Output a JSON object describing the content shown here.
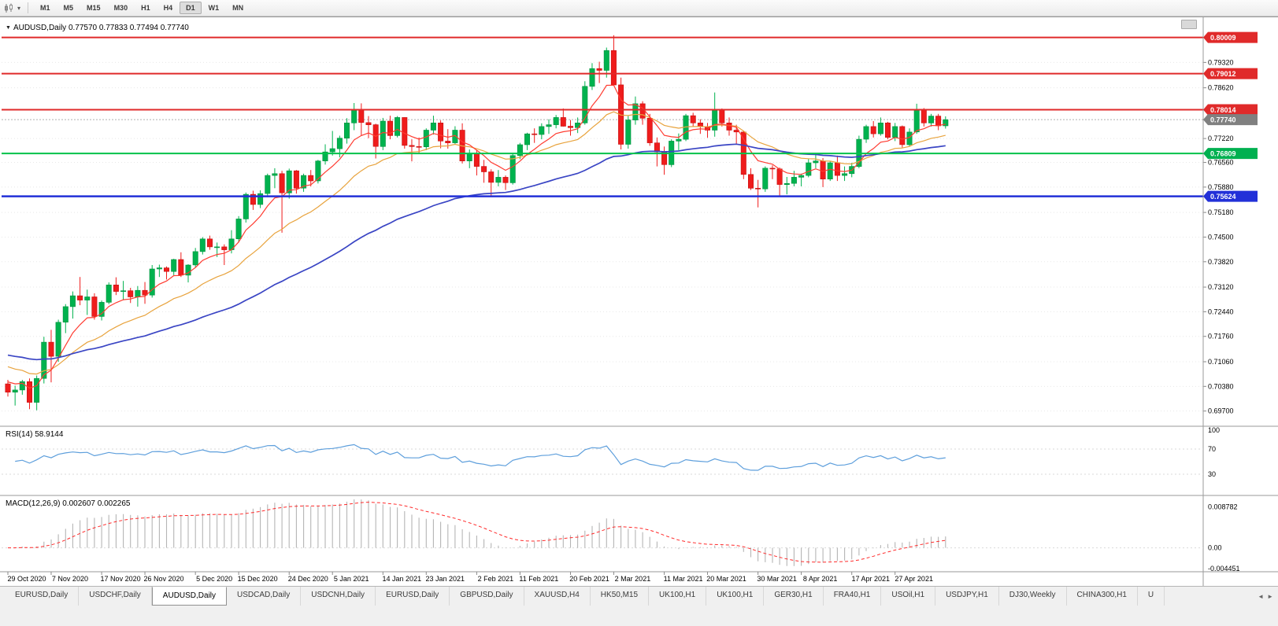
{
  "toolbar": {
    "icons": [
      "candlestick-chart-icon",
      "dropdown-caret-icon"
    ],
    "caret_glyph": "▾",
    "timeframes": [
      "M1",
      "M5",
      "M15",
      "M30",
      "H1",
      "H4",
      "D1",
      "W1",
      "MN"
    ],
    "active_timeframe": "D1"
  },
  "chart_header": {
    "collapse_icon": "▼",
    "title": "AUDUSD,Daily 0.77570 0.77833 0.77494 0.77740"
  },
  "indicators": {
    "rsi_label": "RSI(14) 58.9144",
    "macd_label": "MACD(12,26,9) 0.002607 0.002265"
  },
  "colors": {
    "bull": "#00b24e",
    "bull_edge": "#00913f",
    "bear": "#ef1c1c",
    "bear_edge": "#c51111",
    "ma_fast": "#ff3b30",
    "ma_mid": "#e8a33d",
    "ma_slow": "#3a45c4",
    "rsi_line": "#5e9fdc",
    "macd_hist": "#b5b5b5",
    "macd_signal": "#ff2a2a",
    "grid": "#e8e8e8",
    "separator": "#9a9a9a",
    "line_red": "#e02a2a",
    "line_green": "#00c24a",
    "line_blue": "#2230d8",
    "current_tag": "#808080"
  },
  "price_axis": {
    "ticks": [
      "0.79320",
      "0.78620",
      "0.77220",
      "0.76560",
      "0.75880",
      "0.75180",
      "0.74500",
      "0.73820",
      "0.73120",
      "0.72440",
      "0.71760",
      "0.71060",
      "0.70380",
      "0.69700"
    ],
    "tags": [
      {
        "text": "0.80009",
        "price": 0.80009,
        "color": "#e02a2a"
      },
      {
        "text": "0.79012",
        "price": 0.79012,
        "color": "#e02a2a"
      },
      {
        "text": "0.78014",
        "price": 0.78014,
        "color": "#e02a2a"
      },
      {
        "text": "0.77740",
        "price": 0.7774,
        "color": "#808080"
      },
      {
        "text": "0.76809",
        "price": 0.76809,
        "color": "#00b050"
      },
      {
        "text": "0.75624",
        "price": 0.75624,
        "color": "#2230d8"
      }
    ]
  },
  "hlines": [
    {
      "price": 0.80009,
      "color": "#e02a2a",
      "w": 2
    },
    {
      "price": 0.79012,
      "color": "#e02a2a",
      "w": 2
    },
    {
      "price": 0.78014,
      "color": "#e02a2a",
      "w": 2
    },
    {
      "price": 0.76809,
      "color": "#00c24a",
      "w": 2
    },
    {
      "price": 0.75624,
      "color": "#2230d8",
      "w": 2.5
    }
  ],
  "current_price": 0.7774,
  "chart_data": {
    "type": "candlestick",
    "symbol": "AUDUSD",
    "timeframe": "Daily",
    "ohlc_display": {
      "open": "0.77570",
      "high": "0.77833",
      "low": "0.77494",
      "close": "0.77740"
    },
    "price_range": [
      0.6928,
      0.8037
    ],
    "rsi": {
      "period": 14,
      "last": 58.9144,
      "levels": [
        100,
        70,
        30
      ]
    },
    "macd": {
      "fast": 12,
      "slow": 26,
      "signal": 9,
      "last_values": [
        0.002607,
        0.002265
      ],
      "axis_labels": [
        "0.008782",
        "0.00",
        "-0.004451"
      ],
      "axis_values": [
        0.008782,
        0,
        -0.004451
      ]
    },
    "x_labels": [
      {
        "text": "29 Oct 2020",
        "i": 0
      },
      {
        "text": "7 Nov 2020",
        "i": 6
      },
      {
        "text": "17 Nov 2020",
        "i": 13
      },
      {
        "text": "26 Nov 2020",
        "i": 19
      },
      {
        "text": "5 Dec 2020",
        "i": 26
      },
      {
        "text": "15 Dec 2020",
        "i": 32
      },
      {
        "text": "24 Dec 2020",
        "i": 39
      },
      {
        "text": "5 Jan 2021",
        "i": 45
      },
      {
        "text": "14 Jan 2021",
        "i": 52
      },
      {
        "text": "23 Jan 2021",
        "i": 58
      },
      {
        "text": "2 Feb 2021",
        "i": 65
      },
      {
        "text": "11 Feb 2021",
        "i": 71
      },
      {
        "text": "20 Feb 2021",
        "i": 78
      },
      {
        "text": "2 Mar 2021",
        "i": 84
      },
      {
        "text": "11 Mar 2021",
        "i": 91
      },
      {
        "text": "20 Mar 2021",
        "i": 97
      },
      {
        "text": "30 Mar 2021",
        "i": 104
      },
      {
        "text": "8 Apr 2021",
        "i": 110
      },
      {
        "text": "17 Apr 2021",
        "i": 117
      },
      {
        "text": "27 Apr 2021",
        "i": 123
      }
    ],
    "candles": [
      [
        0.7045,
        0.7056,
        0.701,
        0.7022
      ],
      [
        0.7022,
        0.704,
        0.6985,
        0.7028
      ],
      [
        0.7028,
        0.7056,
        0.7015,
        0.7051
      ],
      [
        0.7051,
        0.706,
        0.6975,
        0.6994
      ],
      [
        0.6994,
        0.7068,
        0.6972,
        0.706
      ],
      [
        0.706,
        0.7175,
        0.7046,
        0.716
      ],
      [
        0.716,
        0.7194,
        0.7049,
        0.7121
      ],
      [
        0.7121,
        0.7222,
        0.7106,
        0.7215
      ],
      [
        0.7215,
        0.7265,
        0.7185,
        0.7258
      ],
      [
        0.7258,
        0.73,
        0.7225,
        0.7288
      ],
      [
        0.7288,
        0.734,
        0.7262,
        0.7276
      ],
      [
        0.7276,
        0.7305,
        0.7235,
        0.7285
      ],
      [
        0.7285,
        0.7295,
        0.7222,
        0.7231
      ],
      [
        0.7231,
        0.7275,
        0.722,
        0.727
      ],
      [
        0.727,
        0.7325,
        0.7265,
        0.7318
      ],
      [
        0.7318,
        0.7339,
        0.729,
        0.73
      ],
      [
        0.73,
        0.7329,
        0.7276,
        0.7302
      ],
      [
        0.7302,
        0.731,
        0.7268,
        0.7285
      ],
      [
        0.7285,
        0.7315,
        0.7258,
        0.7303
      ],
      [
        0.7303,
        0.7326,
        0.7266,
        0.729
      ],
      [
        0.729,
        0.7373,
        0.7283,
        0.7362
      ],
      [
        0.7362,
        0.7374,
        0.734,
        0.7365
      ],
      [
        0.7365,
        0.7369,
        0.7333,
        0.7355
      ],
      [
        0.7355,
        0.739,
        0.7345,
        0.7388
      ],
      [
        0.7388,
        0.7408,
        0.734,
        0.7345
      ],
      [
        0.7345,
        0.7375,
        0.7325,
        0.7373
      ],
      [
        0.7373,
        0.742,
        0.7365,
        0.741
      ],
      [
        0.741,
        0.745,
        0.7402,
        0.7445
      ],
      [
        0.7445,
        0.7454,
        0.7415,
        0.7423
      ],
      [
        0.7423,
        0.7435,
        0.7395,
        0.7423
      ],
      [
        0.7423,
        0.743,
        0.7373,
        0.7415
      ],
      [
        0.7415,
        0.7469,
        0.7405,
        0.7445
      ],
      [
        0.7445,
        0.7508,
        0.7435,
        0.75
      ],
      [
        0.75,
        0.7573,
        0.749,
        0.7568
      ],
      [
        0.7568,
        0.7578,
        0.7525,
        0.754
      ],
      [
        0.754,
        0.7579,
        0.753,
        0.757
      ],
      [
        0.757,
        0.7625,
        0.756,
        0.762
      ],
      [
        0.762,
        0.764,
        0.7585,
        0.7625
      ],
      [
        0.7625,
        0.7633,
        0.7462,
        0.7572
      ],
      [
        0.7572,
        0.7639,
        0.7556,
        0.7633
      ],
      [
        0.7633,
        0.7635,
        0.757,
        0.7585
      ],
      [
        0.7585,
        0.7625,
        0.7575,
        0.762
      ],
      [
        0.762,
        0.7635,
        0.759,
        0.7605
      ],
      [
        0.7605,
        0.7663,
        0.7598,
        0.766
      ],
      [
        0.766,
        0.7706,
        0.765,
        0.7685
      ],
      [
        0.7685,
        0.7743,
        0.7675,
        0.7694
      ],
      [
        0.7694,
        0.773,
        0.767,
        0.7723
      ],
      [
        0.7723,
        0.7778,
        0.7708,
        0.7765
      ],
      [
        0.7765,
        0.782,
        0.7745,
        0.7803
      ],
      [
        0.7803,
        0.7819,
        0.7731,
        0.7766
      ],
      [
        0.7766,
        0.7784,
        0.7723,
        0.776
      ],
      [
        0.776,
        0.7763,
        0.7667,
        0.77
      ],
      [
        0.77,
        0.7779,
        0.769,
        0.777
      ],
      [
        0.777,
        0.7785,
        0.772,
        0.773
      ],
      [
        0.773,
        0.7784,
        0.7725,
        0.778
      ],
      [
        0.778,
        0.7781,
        0.7694,
        0.7703
      ],
      [
        0.7703,
        0.772,
        0.7659,
        0.77
      ],
      [
        0.77,
        0.7725,
        0.768,
        0.7699
      ],
      [
        0.7699,
        0.775,
        0.769,
        0.7745
      ],
      [
        0.7745,
        0.7785,
        0.7733,
        0.7765
      ],
      [
        0.7765,
        0.7772,
        0.7695,
        0.7715
      ],
      [
        0.7715,
        0.7748,
        0.7694,
        0.771
      ],
      [
        0.771,
        0.7756,
        0.7705,
        0.7745
      ],
      [
        0.7745,
        0.7764,
        0.7653,
        0.766
      ],
      [
        0.766,
        0.7692,
        0.764,
        0.768
      ],
      [
        0.768,
        0.7689,
        0.762,
        0.7645
      ],
      [
        0.7645,
        0.7663,
        0.76,
        0.763
      ],
      [
        0.763,
        0.7637,
        0.7563,
        0.7601
      ],
      [
        0.7601,
        0.7635,
        0.759,
        0.7615
      ],
      [
        0.7615,
        0.762,
        0.758,
        0.76
      ],
      [
        0.76,
        0.768,
        0.7595,
        0.7675
      ],
      [
        0.7675,
        0.771,
        0.7665,
        0.7705
      ],
      [
        0.7705,
        0.7738,
        0.769,
        0.7735
      ],
      [
        0.7735,
        0.775,
        0.771,
        0.7733
      ],
      [
        0.7733,
        0.7764,
        0.772,
        0.7755
      ],
      [
        0.7755,
        0.7775,
        0.7735,
        0.776
      ],
      [
        0.776,
        0.7787,
        0.775,
        0.778
      ],
      [
        0.778,
        0.7805,
        0.7755,
        0.7756
      ],
      [
        0.7756,
        0.7773,
        0.773,
        0.7752
      ],
      [
        0.7752,
        0.778,
        0.7737,
        0.7765
      ],
      [
        0.7765,
        0.788,
        0.776,
        0.7866
      ],
      [
        0.7866,
        0.793,
        0.7856,
        0.7915
      ],
      [
        0.7915,
        0.7934,
        0.7875,
        0.791
      ],
      [
        0.791,
        0.7973,
        0.789,
        0.7965
      ],
      [
        0.7965,
        0.8007,
        0.7885,
        0.787
      ],
      [
        0.787,
        0.789,
        0.7692,
        0.7706
      ],
      [
        0.7706,
        0.7784,
        0.7694,
        0.7773
      ],
      [
        0.7773,
        0.7838,
        0.776,
        0.7818
      ],
      [
        0.7818,
        0.7825,
        0.776,
        0.7778
      ],
      [
        0.7778,
        0.779,
        0.7702,
        0.771
      ],
      [
        0.771,
        0.7725,
        0.7645,
        0.7685
      ],
      [
        0.7685,
        0.77,
        0.7622,
        0.765
      ],
      [
        0.765,
        0.772,
        0.7643,
        0.7715
      ],
      [
        0.7715,
        0.7736,
        0.769,
        0.772
      ],
      [
        0.772,
        0.779,
        0.7715,
        0.7785
      ],
      [
        0.7785,
        0.7793,
        0.7755,
        0.7765
      ],
      [
        0.7765,
        0.7775,
        0.7735,
        0.7755
      ],
      [
        0.7755,
        0.7765,
        0.7724,
        0.7745
      ],
      [
        0.7745,
        0.7849,
        0.7727,
        0.78
      ],
      [
        0.78,
        0.7805,
        0.7755,
        0.7765
      ],
      [
        0.7765,
        0.778,
        0.773,
        0.7745
      ],
      [
        0.7745,
        0.776,
        0.7708,
        0.774
      ],
      [
        0.774,
        0.7744,
        0.761,
        0.7623
      ],
      [
        0.7623,
        0.764,
        0.758,
        0.7585
      ],
      [
        0.7585,
        0.7608,
        0.7532,
        0.7583
      ],
      [
        0.7583,
        0.7645,
        0.7575,
        0.764
      ],
      [
        0.764,
        0.7648,
        0.761,
        0.7638
      ],
      [
        0.7638,
        0.7642,
        0.7564,
        0.7595
      ],
      [
        0.7595,
        0.7616,
        0.7568,
        0.7598
      ],
      [
        0.7598,
        0.7633,
        0.759,
        0.7615
      ],
      [
        0.7615,
        0.7625,
        0.759,
        0.762
      ],
      [
        0.762,
        0.7665,
        0.7615,
        0.7655
      ],
      [
        0.7655,
        0.768,
        0.764,
        0.766
      ],
      [
        0.766,
        0.7668,
        0.7588,
        0.761
      ],
      [
        0.761,
        0.766,
        0.7605,
        0.7655
      ],
      [
        0.7655,
        0.7675,
        0.7605,
        0.762
      ],
      [
        0.762,
        0.7645,
        0.7605,
        0.7625
      ],
      [
        0.7625,
        0.7655,
        0.7615,
        0.7645
      ],
      [
        0.7645,
        0.773,
        0.764,
        0.772
      ],
      [
        0.772,
        0.776,
        0.771,
        0.7755
      ],
      [
        0.7755,
        0.777,
        0.7725,
        0.7735
      ],
      [
        0.7735,
        0.778,
        0.773,
        0.7765
      ],
      [
        0.7765,
        0.7768,
        0.772,
        0.7725
      ],
      [
        0.7725,
        0.7765,
        0.7715,
        0.7755
      ],
      [
        0.7755,
        0.7758,
        0.7697,
        0.7705
      ],
      [
        0.7705,
        0.775,
        0.77,
        0.774
      ],
      [
        0.774,
        0.7818,
        0.7735,
        0.78
      ],
      [
        0.78,
        0.7806,
        0.7755,
        0.7765
      ],
      [
        0.7765,
        0.779,
        0.7755,
        0.7784
      ],
      [
        0.7784,
        0.779,
        0.7745,
        0.7757
      ],
      [
        0.7757,
        0.77833,
        0.77494,
        0.7774
      ]
    ]
  },
  "tabs": [
    "EURUSD,Daily",
    "USDCHF,Daily",
    "AUDUSD,Daily",
    "USDCAD,Daily",
    "USDCNH,Daily",
    "EURUSD,Daily",
    "GBPUSD,Daily",
    "XAUUSD,H4",
    "HK50,M15",
    "UK100,H1",
    "UK100,H1",
    "GER30,H1",
    "FRA40,H1",
    "USOil,H1",
    "USDJPY,H1",
    "DJ30,Weekly",
    "CHINA300,H1",
    "U"
  ],
  "active_tab_index": 2,
  "tabbar": {
    "left_arrow": "◄",
    "right_arrow": "►"
  }
}
